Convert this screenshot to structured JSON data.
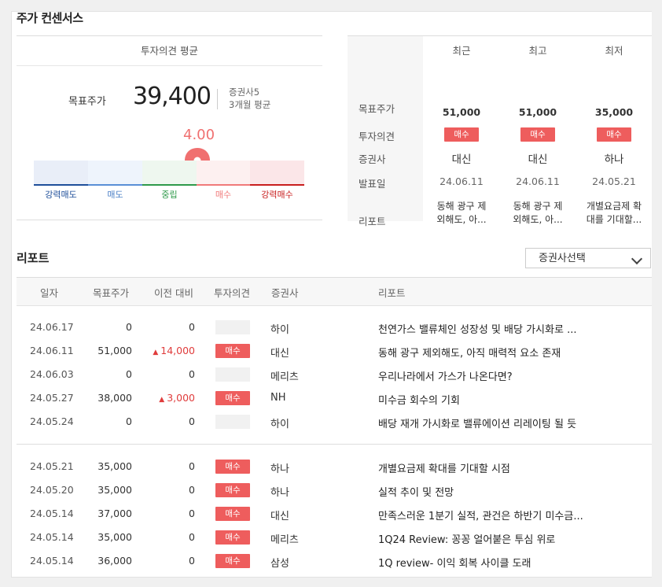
{
  "section_title": "주가 컨센서스",
  "opinion_avg": {
    "header": "투자의견 평균",
    "target_label": "목표주가",
    "target_value": "39,400",
    "brokers": "증권사5",
    "period": "3개월 평균",
    "score": "4.00",
    "scale_labels": [
      "강력매도",
      "매도",
      "중립",
      "매수",
      "강력매수"
    ]
  },
  "summary": {
    "columns": [
      "최근",
      "최고",
      "최저"
    ],
    "row_labels": [
      "목표주가",
      "투자의견",
      "증권사",
      "발표일",
      "리포트"
    ],
    "cols": [
      {
        "target": "51,000",
        "opinion": "매수",
        "broker": "대신",
        "date": "24.06.11",
        "report1": "동해 광구 제",
        "report2": "외해도, 아..."
      },
      {
        "target": "51,000",
        "opinion": "매수",
        "broker": "대신",
        "date": "24.06.11",
        "report1": "동해 광구 제",
        "report2": "외해도, 아..."
      },
      {
        "target": "35,000",
        "opinion": "매수",
        "broker": "하나",
        "date": "24.05.21",
        "report1": "개별요금제 확",
        "report2": "대를 기대할..."
      }
    ]
  },
  "reports": {
    "title": "리포트",
    "select_label": "증권사선택",
    "headers": [
      "일자",
      "목표주가",
      "이전 대비",
      "투자의견",
      "증권사",
      "리포트"
    ],
    "rows": [
      {
        "date": "24.06.17",
        "target": "0",
        "change": "0",
        "opinion": "",
        "broker": "하이",
        "report": "천연가스 밸류체인 성장성 및 배당 가시화로 ..."
      },
      {
        "date": "24.06.11",
        "target": "51,000",
        "change": "14,000",
        "opinion": "매수",
        "broker": "대신",
        "report": "동해 광구 제외해도, 아직 매력적 요소 존재"
      },
      {
        "date": "24.06.03",
        "target": "0",
        "change": "0",
        "opinion": "",
        "broker": "메리츠",
        "report": "우리나라에서 가스가 나온다면?"
      },
      {
        "date": "24.05.27",
        "target": "38,000",
        "change": "3,000",
        "opinion": "매수",
        "broker": "NH",
        "report": "미수금 회수의 기회"
      },
      {
        "date": "24.05.24",
        "target": "0",
        "change": "0",
        "opinion": "",
        "broker": "하이",
        "report": "배당 재개 가시화로 밸류에이션 리레이팅 될 듯"
      },
      {
        "date": "24.05.21",
        "target": "35,000",
        "change": "0",
        "opinion": "매수",
        "broker": "하나",
        "report": "개별요금제 확대를 기대할 시점"
      },
      {
        "date": "24.05.20",
        "target": "35,000",
        "change": "0",
        "opinion": "매수",
        "broker": "하나",
        "report": "실적 추이 및 전망"
      },
      {
        "date": "24.05.14",
        "target": "37,000",
        "change": "0",
        "opinion": "매수",
        "broker": "대신",
        "report": "만족스러운 1분기 실적, 관건은 하반기 미수금..."
      },
      {
        "date": "24.05.14",
        "target": "35,000",
        "change": "0",
        "opinion": "매수",
        "broker": "메리츠",
        "report": "1Q24 Review: 꽁꽁 얼어붙은 투심 위로"
      },
      {
        "date": "24.05.14",
        "target": "36,000",
        "change": "0",
        "opinion": "매수",
        "broker": "삼성",
        "report": "1Q review- 이익 회복 사이클 도래"
      }
    ]
  },
  "colors": {
    "accent_red": "#ee5d5d",
    "up_red": "#e03c3c",
    "marker": "#f07070",
    "strong_sell": "#1f4f9a",
    "sell": "#5a8fd6",
    "neutral": "#2e9a4a",
    "buy": "#f07a7a",
    "strong_buy": "#c81e1e"
  }
}
